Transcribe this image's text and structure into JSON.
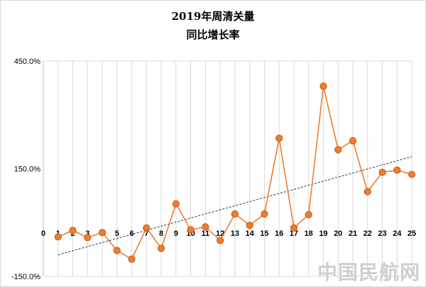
{
  "watermark": "中国民航网",
  "chart_data": {
    "type": "line",
    "title": [
      "2019年周清关量",
      "同比增长率"
    ],
    "xlabel": "",
    "ylabel": "",
    "x": [
      1,
      2,
      3,
      4,
      5,
      6,
      7,
      8,
      9,
      10,
      11,
      12,
      13,
      14,
      15,
      16,
      17,
      18,
      19,
      20,
      21,
      22,
      23,
      24,
      25
    ],
    "x_ticks": [
      0,
      1,
      2,
      3,
      4,
      5,
      6,
      7,
      8,
      9,
      10,
      11,
      12,
      13,
      14,
      15,
      16,
      17,
      18,
      19,
      20,
      21,
      22,
      23,
      24,
      25
    ],
    "values": [
      -40,
      -22,
      -42,
      -28,
      -78,
      -102,
      -15,
      -72,
      52,
      -20,
      -12,
      -50,
      24,
      -8,
      24,
      235,
      -15,
      22,
      380,
      203,
      228,
      86,
      140,
      146,
      134
    ],
    "y_ticks": [
      "450.0%",
      "150.0%",
      "-150.0%"
    ],
    "ylim": [
      -150,
      450
    ],
    "grid": "vertical",
    "trendline": "linear",
    "colors": {
      "line": "#ed7d31",
      "marker": "#ed7d31",
      "marker_edge": "#c55a11",
      "trend": "#1f3864",
      "grid": "#d9d9d9"
    }
  }
}
